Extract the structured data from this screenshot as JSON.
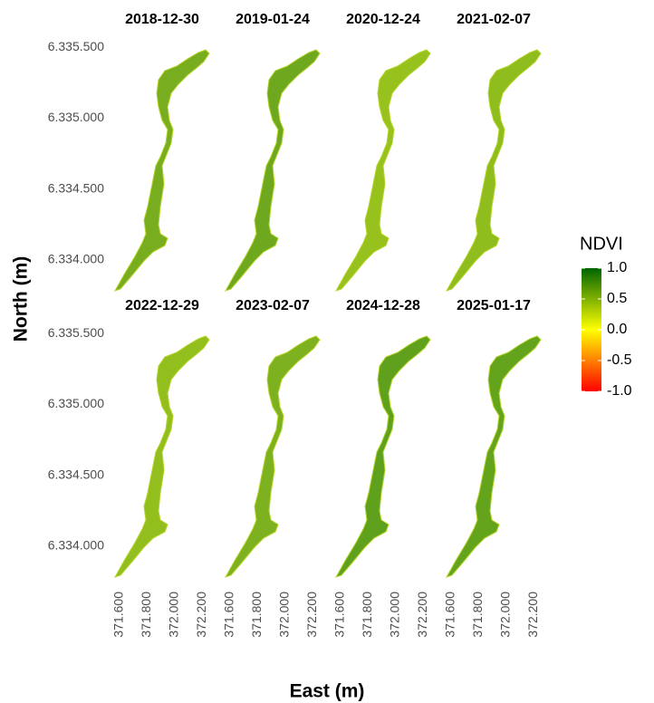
{
  "chart_data": {
    "type": "raster",
    "x_label": "East (m)",
    "y_label": "North (m)",
    "panels": [
      {
        "title": "2018-12-30",
        "color": "#78ad1f"
      },
      {
        "title": "2019-01-24",
        "color": "#6da81e"
      },
      {
        "title": "2020-12-24",
        "color": "#97c21d"
      },
      {
        "title": "2021-02-07",
        "color": "#8fbd1e"
      },
      {
        "title": "2022-12-29",
        "color": "#93bf1e"
      },
      {
        "title": "2023-02-07",
        "color": "#7eb11f"
      },
      {
        "title": "2024-12-28",
        "color": "#5fa11d"
      },
      {
        "title": "2025-01-17",
        "color": "#64a41d"
      }
    ],
    "xlim": [
      371570,
      372250
    ],
    "xticks": [
      {
        "value": 371600,
        "label": "371.600"
      },
      {
        "value": 371800,
        "label": "371.800"
      },
      {
        "value": 372000,
        "label": "372.000"
      },
      {
        "value": 372200,
        "label": "372.200"
      }
    ],
    "ylim": [
      6333780,
      6335560
    ],
    "yticks": [
      {
        "value": 6334000,
        "label": "6.334.000"
      },
      {
        "value": 6334500,
        "label": "6.334.500"
      },
      {
        "value": 6335000,
        "label": "6.335.000"
      },
      {
        "value": 6335500,
        "label": "6.335.500"
      }
    ],
    "legend": {
      "title": "NDVI",
      "lim": [
        -1,
        1
      ],
      "ticks": [
        {
          "value": 1,
          "label": "1.0"
        },
        0.5,
        {
          "value": 0,
          "label": "0.0"
        },
        -0.5,
        {
          "value": -1,
          "label": "-1.0"
        }
      ],
      "colors": [
        "#ff0000",
        "#ffff00",
        "#006400"
      ]
    }
  }
}
